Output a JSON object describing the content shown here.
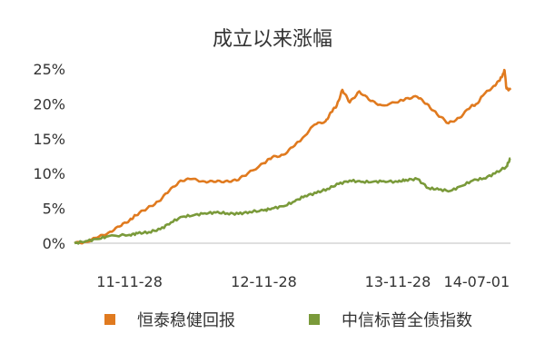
{
  "chart_data": {
    "type": "line",
    "title": "成立以来涨幅",
    "xlabel": "",
    "ylabel": "",
    "ylim": [
      0,
      0.25
    ],
    "yticks": [
      "0%",
      "5%",
      "10%",
      "15%",
      "20%",
      "25%"
    ],
    "y_tick_values": [
      0,
      0.05,
      0.1,
      0.15,
      0.2,
      0.25
    ],
    "xticks": [
      "11-11-28",
      "12-11-28",
      "13-11-28",
      "14-07-01"
    ],
    "grid": false,
    "legend_position": "bottom",
    "series": [
      {
        "name": "恒泰稳健回报",
        "color": "#E07A1F",
        "x": [
          "2011-07-01",
          "2011-08-01",
          "2011-09-01",
          "2011-10-01",
          "2011-11-01",
          "2011-11-28",
          "2011-12-15",
          "2012-01-15",
          "2012-02-15",
          "2012-03-15",
          "2012-04-15",
          "2012-05-15",
          "2012-06-15",
          "2012-07-15",
          "2012-08-15",
          "2012-09-15",
          "2012-10-15",
          "2012-11-28",
          "2012-12-20",
          "2013-01-20",
          "2013-02-20",
          "2013-03-15",
          "2013-04-15",
          "2013-05-15",
          "2013-05-31",
          "2013-06-15",
          "2013-06-30",
          "2013-07-20",
          "2013-08-15",
          "2013-09-15",
          "2013-10-15",
          "2013-11-28",
          "2013-12-20",
          "2014-01-20",
          "2014-02-15",
          "2014-03-15",
          "2014-04-15",
          "2014-05-15",
          "2014-06-15",
          "2014-07-01",
          "2014-07-20",
          "2014-08-15",
          "2014-09-01",
          "2014-09-10",
          "2014-09-15",
          "2014-09-20",
          "2014-10-01"
        ],
        "values": [
          0.0,
          0.002,
          0.008,
          0.015,
          0.024,
          0.033,
          0.04,
          0.05,
          0.06,
          0.075,
          0.09,
          0.092,
          0.089,
          0.088,
          0.089,
          0.09,
          0.1,
          0.115,
          0.123,
          0.127,
          0.14,
          0.152,
          0.17,
          0.175,
          0.188,
          0.198,
          0.22,
          0.202,
          0.218,
          0.204,
          0.198,
          0.202,
          0.208,
          0.21,
          0.2,
          0.185,
          0.172,
          0.18,
          0.196,
          0.2,
          0.213,
          0.225,
          0.233,
          0.242,
          0.248,
          0.222,
          0.22
        ]
      },
      {
        "name": "中信标普全债指数",
        "color": "#7A9A3A",
        "x": [
          "2011-07-01",
          "2011-08-01",
          "2011-09-01",
          "2011-10-01",
          "2011-11-28",
          "2011-12-20",
          "2012-01-20",
          "2012-02-20",
          "2012-03-20",
          "2012-04-20",
          "2012-05-20",
          "2012-06-20",
          "2012-07-20",
          "2012-08-20",
          "2012-09-20",
          "2012-10-20",
          "2012-11-28",
          "2012-12-20",
          "2013-01-20",
          "2013-02-20",
          "2013-03-20",
          "2013-04-20",
          "2013-05-20",
          "2013-06-20",
          "2013-07-20",
          "2013-08-20",
          "2013-09-20",
          "2013-10-20",
          "2013-11-28",
          "2013-12-20",
          "2014-01-20",
          "2014-02-20",
          "2014-03-20",
          "2014-04-20",
          "2014-05-20",
          "2014-06-20",
          "2014-07-20",
          "2014-08-20",
          "2014-09-20",
          "2014-10-01"
        ],
        "values": [
          0.0,
          0.003,
          0.006,
          0.01,
          0.012,
          0.014,
          0.016,
          0.02,
          0.03,
          0.038,
          0.04,
          0.043,
          0.044,
          0.043,
          0.042,
          0.045,
          0.047,
          0.05,
          0.053,
          0.06,
          0.068,
          0.072,
          0.078,
          0.085,
          0.09,
          0.088,
          0.088,
          0.089,
          0.088,
          0.091,
          0.092,
          0.079,
          0.077,
          0.075,
          0.082,
          0.09,
          0.093,
          0.1,
          0.11,
          0.122
        ]
      }
    ]
  }
}
